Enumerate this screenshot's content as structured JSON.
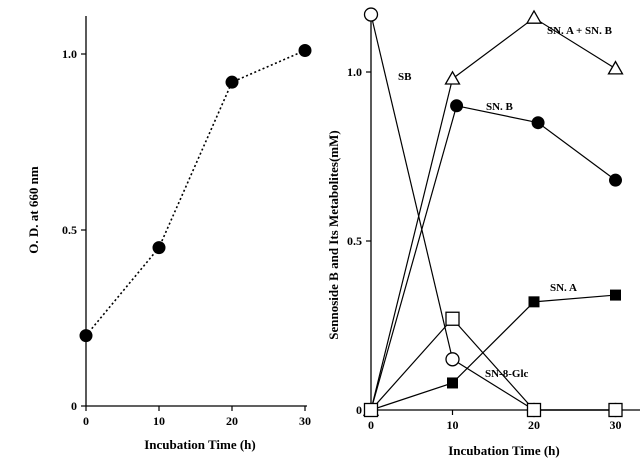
{
  "chart_data": [
    {
      "type": "line",
      "xlabel": "Incubation Time (h)",
      "ylabel": "O. D. at 660 nm",
      "xlim": [
        0,
        33
      ],
      "ylim": [
        0,
        1.2
      ],
      "x_ticks": [
        "0",
        "10",
        "20",
        "30"
      ],
      "y_ticks": [
        "0",
        "0.5",
        "1.0"
      ],
      "grid": false,
      "series": [
        {
          "marker": "filled-circle",
          "line_style": "dotted",
          "color": "#000000",
          "x": [
            0,
            10,
            20,
            30
          ],
          "y": [
            0.2,
            0.45,
            0.92,
            1.01
          ]
        }
      ]
    },
    {
      "type": "line",
      "xlabel": "Incubation Time (h)",
      "ylabel": "Sennoside B and Its Metabolites(mM)",
      "xlim": [
        0,
        33
      ],
      "ylim": [
        0,
        1.2
      ],
      "x_ticks": [
        "0",
        "10",
        "20",
        "30"
      ],
      "y_ticks": [
        "0",
        "0.5",
        "1.0"
      ],
      "grid": false,
      "series": [
        {
          "name": "SB",
          "marker": "open-circle",
          "line_style": "solid",
          "color": "#000000",
          "x": [
            0,
            10,
            20,
            30
          ],
          "y": [
            1.17,
            0.15,
            0.0,
            0.0
          ]
        },
        {
          "name": "SN. A + SN. B",
          "marker": "open-triangle",
          "line_style": "solid",
          "color": "#000000",
          "x": [
            0,
            10,
            20,
            30
          ],
          "y": [
            0.0,
            0.98,
            1.16,
            1.01
          ]
        },
        {
          "name": "SN. B",
          "marker": "filled-circle",
          "line_style": "solid",
          "color": "#000000",
          "x": [
            0,
            10.5,
            20.5,
            30
          ],
          "y": [
            0.0,
            0.9,
            0.85,
            0.68
          ]
        },
        {
          "name": "SN. A",
          "marker": "filled-square",
          "line_style": "solid",
          "color": "#000000",
          "x": [
            0,
            10,
            20,
            30
          ],
          "y": [
            0.0,
            0.08,
            0.32,
            0.34
          ]
        },
        {
          "name": "SN-8-Glc",
          "marker": "open-square",
          "line_style": "solid",
          "color": "#000000",
          "x": [
            0,
            10,
            20,
            30
          ],
          "y": [
            0.0,
            0.27,
            0.0,
            0.0
          ]
        }
      ]
    }
  ]
}
